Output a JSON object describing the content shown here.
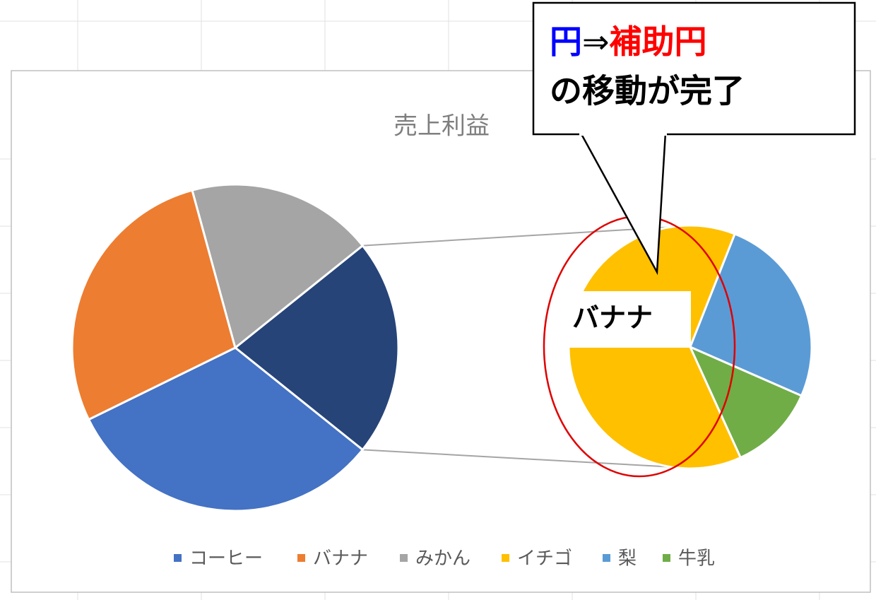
{
  "chart_data": {
    "type": "pie-of-pie",
    "title": "売上利益",
    "categories": [
      "コーヒー",
      "バナナ",
      "みかん",
      "イチゴ",
      "梨",
      "牛乳"
    ],
    "values": [
      32,
      28,
      18.5,
      13.5,
      5.5,
      2.5
    ],
    "colors": [
      "#4472c4",
      "#ed7d31",
      "#a5a5a5",
      "#ffc000",
      "#5b9bd5",
      "#70ad47"
    ],
    "secondary_count": 3,
    "other_color": "#264478",
    "legend": "bottom"
  },
  "callout": {
    "line1": [
      "円",
      "⇒",
      "補助円"
    ],
    "line2": "の移動が完了"
  },
  "highlight_label": "バナナ"
}
